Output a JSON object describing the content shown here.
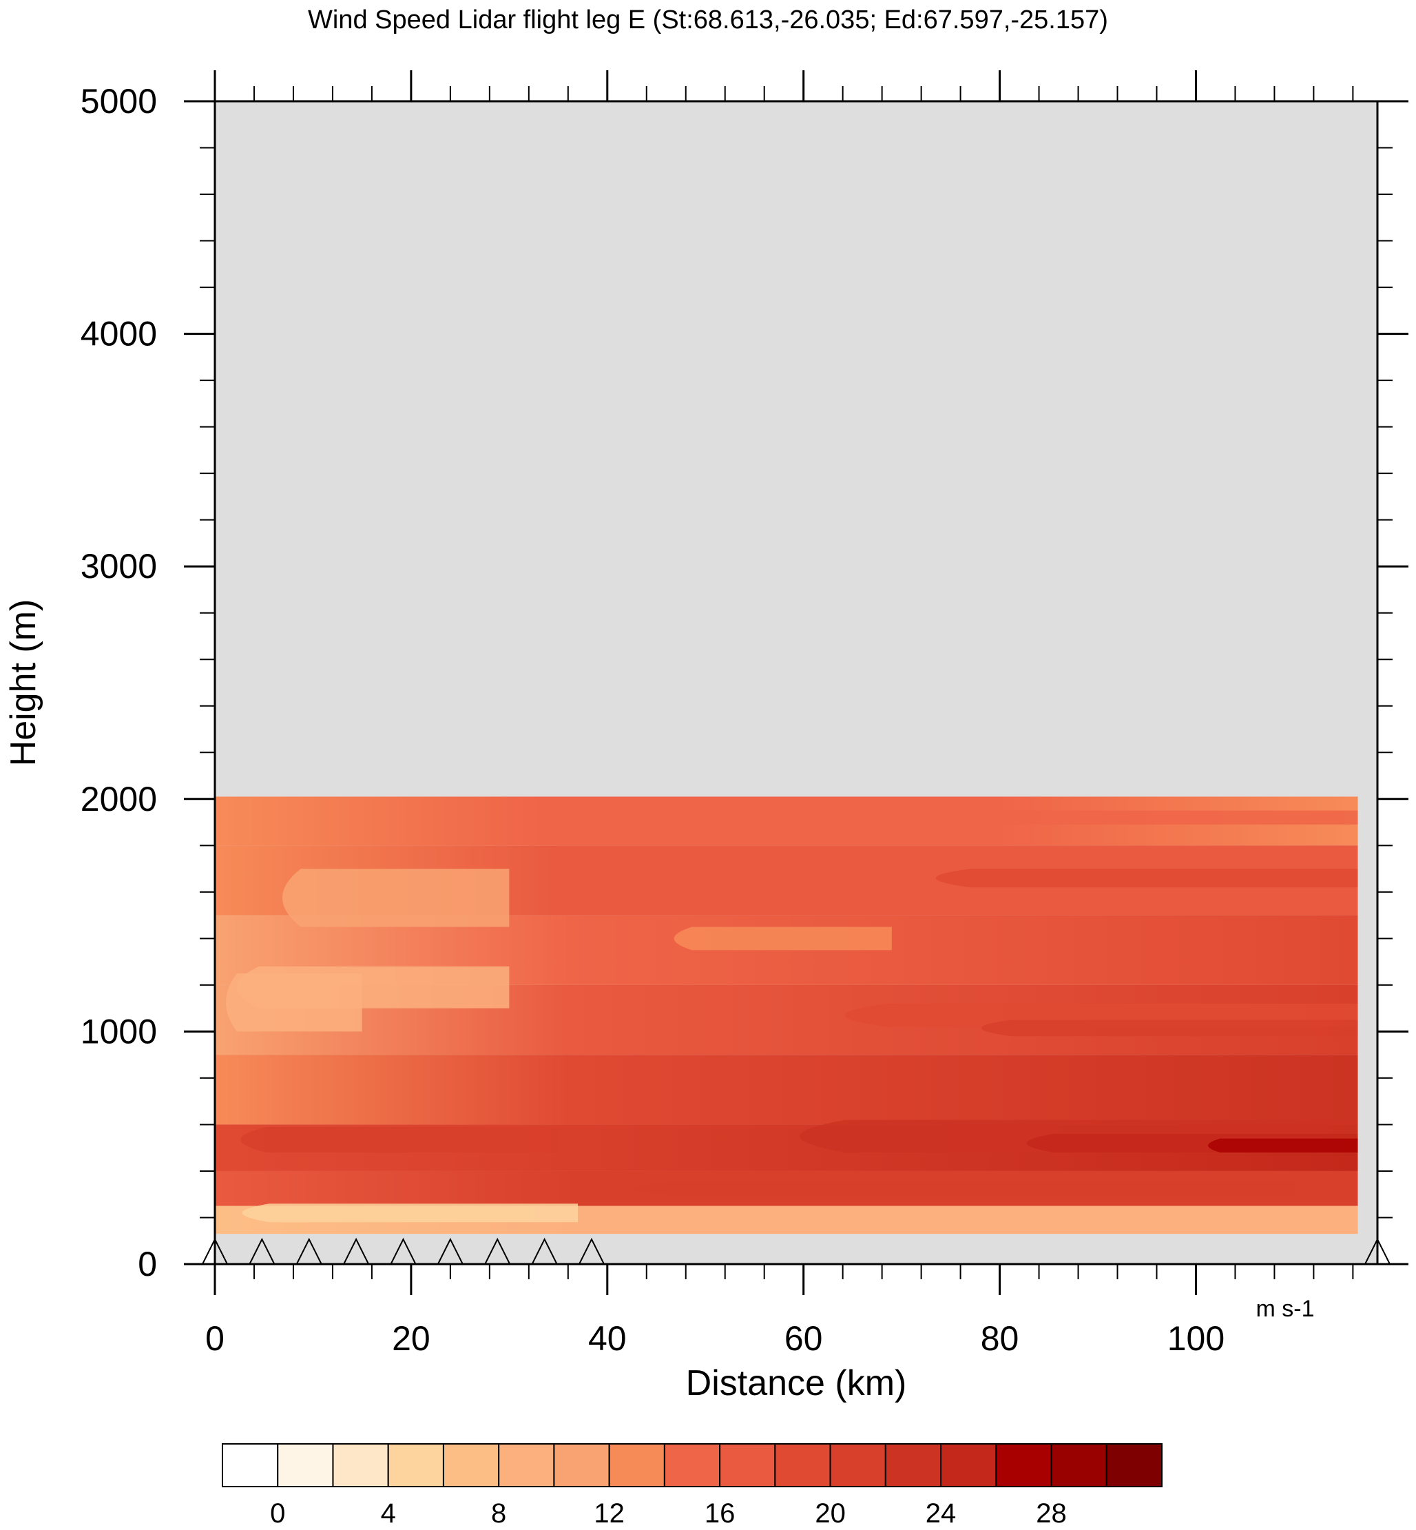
{
  "chart_data": {
    "type": "heatmap",
    "title": "Wind Speed Lidar flight leg E (St:68.613,-26.035; Ed:67.597,-25.157)",
    "xlabel": "Distance (km)",
    "ylabel": "Height (m)",
    "xlim": [
      0,
      118.5
    ],
    "ylim": [
      0,
      5000
    ],
    "x_ticks": [
      0,
      20,
      40,
      60,
      80,
      100
    ],
    "y_ticks": [
      0,
      1000,
      2000,
      3000,
      4000,
      5000
    ],
    "data_extent": {
      "x": [
        0,
        116.5
      ],
      "y": [
        130,
        2010
      ]
    },
    "missing_value_color": "#dedede",
    "colorbar": {
      "units": "m s-1",
      "levels": [
        0,
        2,
        4,
        6,
        8,
        10,
        12,
        14,
        16,
        18,
        20,
        22,
        24,
        26,
        28,
        30,
        32
      ],
      "labeled_levels": [
        0,
        4,
        8,
        12,
        16,
        20,
        24,
        28
      ],
      "colors": [
        "#ffffff",
        "#fff5e6",
        "#fee6c8",
        "#fdd49e",
        "#fdbe86",
        "#fcb07e",
        "#f9a372",
        "#f78b58",
        "#ef6548",
        "#e95a40",
        "#e04a33",
        "#d8402c",
        "#cc3322",
        "#c4281a",
        "#a80000",
        "#990000",
        "#7f0000"
      ]
    },
    "terrain_markers_x": [
      0,
      4.8,
      9.6,
      14.4,
      19.2,
      24,
      28.8,
      33.6,
      38.4,
      118.5
    ],
    "series": [
      {
        "y_range": [
          2010,
          1800
        ],
        "x_breaks": [
          0,
          33,
          80,
          116.5
        ],
        "values": [
          13,
          15,
          15,
          13
        ]
      },
      {
        "y_range": [
          1800,
          1500
        ],
        "x_breaks": [
          0,
          35,
          116.5
        ],
        "values": [
          12,
          17,
          17
        ]
      },
      {
        "y_range": [
          1500,
          1200
        ],
        "x_breaks": [
          0,
          36,
          116.5
        ],
        "values": [
          11,
          15,
          18
        ]
      },
      {
        "y_range": [
          1200,
          900
        ],
        "x_breaks": [
          0,
          36,
          116.5
        ],
        "values": [
          10,
          17,
          21
        ]
      },
      {
        "y_range": [
          900,
          600
        ],
        "x_breaks": [
          0,
          36,
          116.5
        ],
        "values": [
          12,
          19,
          22
        ]
      },
      {
        "y_range": [
          600,
          400
        ],
        "x_breaks": [
          0,
          37,
          116.5
        ],
        "values": [
          18,
          21,
          25
        ]
      },
      {
        "y_range": [
          400,
          250
        ],
        "x_breaks": [
          0,
          37,
          116.5
        ],
        "values": [
          16,
          21,
          20
        ]
      },
      {
        "y_range": [
          250,
          130
        ],
        "x_breaks": [
          0,
          37,
          116.5
        ],
        "values": [
          7,
          9,
          8
        ]
      }
    ]
  }
}
